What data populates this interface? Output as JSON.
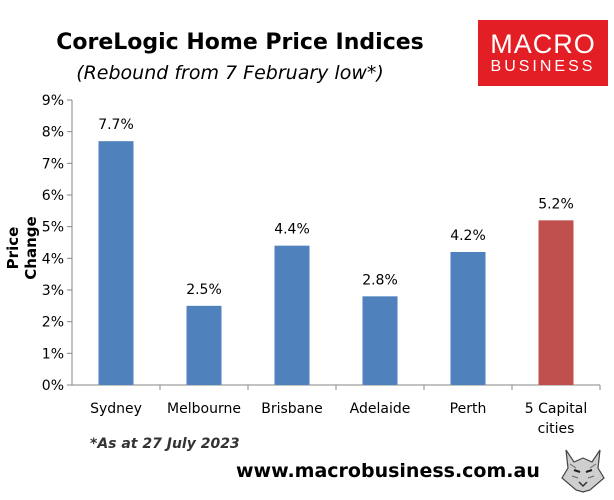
{
  "title": "CoreLogic Home Price Indices",
  "subtitle": "(Rebound from 7 February low*)",
  "logo": {
    "line1": "MACRO",
    "line2": "BUSINESS"
  },
  "footnote": "*As at 27 July 2023",
  "website": "www.macrobusiness.com.au",
  "colors": {
    "bar": "#4f81bd",
    "highlight": "#c0504d",
    "logo_bg": "#e31e24"
  },
  "chart_data": {
    "type": "bar",
    "categories": [
      "Sydney",
      "Melbourne",
      "Brisbane",
      "Adelaide",
      "Perth",
      "5 Capital cities"
    ],
    "category_lines": [
      [
        "Sydney"
      ],
      [
        "Melbourne"
      ],
      [
        "Brisbane"
      ],
      [
        "Adelaide"
      ],
      [
        "Perth"
      ],
      [
        "5 Capital",
        "cities"
      ]
    ],
    "values": [
      7.7,
      2.5,
      4.4,
      2.8,
      4.2,
      5.2
    ],
    "data_labels": [
      "7.7%",
      "2.5%",
      "4.4%",
      "2.8%",
      "4.2%",
      "5.2%"
    ],
    "highlight_index": 5,
    "ylabel": "Price Change",
    "ylim": [
      0,
      9
    ],
    "yticks": [
      "0%",
      "1%",
      "2%",
      "3%",
      "4%",
      "5%",
      "6%",
      "7%",
      "8%",
      "9%"
    ],
    "grid": false,
    "legend": "none"
  }
}
